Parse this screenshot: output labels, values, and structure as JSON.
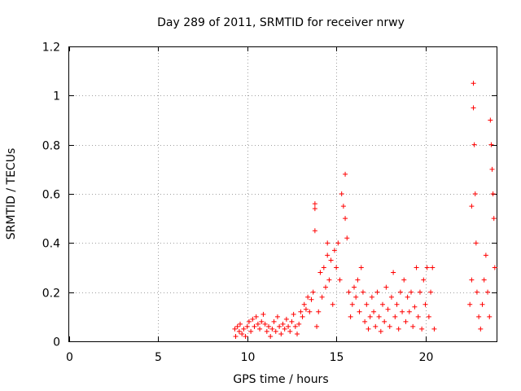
{
  "chart_data": {
    "type": "scatter",
    "title": "Day 289 of 2011, SRMTID for receiver nrwy",
    "xlabel": "GPS time / hours",
    "ylabel": "SRMTID / TECUs",
    "xlim": [
      0,
      24
    ],
    "ylim": [
      0,
      1.2
    ],
    "xticks": [
      0,
      5,
      10,
      15,
      20
    ],
    "xtick_labels": [
      "0",
      "5",
      "10",
      "15",
      "20"
    ],
    "yticks": [
      0,
      0.2,
      0.4,
      0.6,
      0.8,
      1.0,
      1.2
    ],
    "ytick_labels": [
      "0",
      "0.2",
      "0.4",
      "0.6",
      "0.8",
      "1",
      "1.2"
    ],
    "grid": true,
    "marker": "plus",
    "color": "#ff0000",
    "series": [
      {
        "name": "SRMTID",
        "points": [
          [
            9.3,
            0.05
          ],
          [
            9.35,
            0.02
          ],
          [
            9.45,
            0.06
          ],
          [
            9.55,
            0.04
          ],
          [
            9.6,
            0.07
          ],
          [
            9.7,
            0.03
          ],
          [
            9.8,
            0.05
          ],
          [
            9.9,
            0.02
          ],
          [
            10.0,
            0.06
          ],
          [
            10.1,
            0.08
          ],
          [
            10.2,
            0.04
          ],
          [
            10.3,
            0.09
          ],
          [
            10.4,
            0.06
          ],
          [
            10.5,
            0.1
          ],
          [
            10.6,
            0.07
          ],
          [
            10.7,
            0.05
          ],
          [
            10.8,
            0.08
          ],
          [
            10.9,
            0.11
          ],
          [
            11.0,
            0.07
          ],
          [
            11.1,
            0.04
          ],
          [
            11.2,
            0.06
          ],
          [
            11.3,
            0.02
          ],
          [
            11.4,
            0.05
          ],
          [
            11.5,
            0.08
          ],
          [
            11.6,
            0.04
          ],
          [
            11.7,
            0.1
          ],
          [
            11.8,
            0.06
          ],
          [
            11.9,
            0.03
          ],
          [
            12.0,
            0.07
          ],
          [
            12.1,
            0.05
          ],
          [
            12.2,
            0.09
          ],
          [
            12.3,
            0.06
          ],
          [
            12.4,
            0.04
          ],
          [
            12.5,
            0.08
          ],
          [
            12.6,
            0.11
          ],
          [
            12.7,
            0.06
          ],
          [
            12.8,
            0.03
          ],
          [
            12.9,
            0.07
          ],
          [
            13.0,
            0.12
          ],
          [
            13.1,
            0.1
          ],
          [
            13.2,
            0.15
          ],
          [
            13.3,
            0.13
          ],
          [
            13.4,
            0.18
          ],
          [
            13.5,
            0.12
          ],
          [
            13.6,
            0.17
          ],
          [
            13.7,
            0.2
          ],
          [
            13.8,
            0.56
          ],
          [
            13.8,
            0.45
          ],
          [
            13.8,
            0.54
          ],
          [
            13.9,
            0.06
          ],
          [
            14.0,
            0.12
          ],
          [
            14.1,
            0.28
          ],
          [
            14.2,
            0.18
          ],
          [
            14.3,
            0.3
          ],
          [
            14.4,
            0.22
          ],
          [
            14.5,
            0.4
          ],
          [
            14.5,
            0.35
          ],
          [
            14.6,
            0.25
          ],
          [
            14.7,
            0.33
          ],
          [
            14.8,
            0.15
          ],
          [
            14.9,
            0.37
          ],
          [
            15.0,
            0.3
          ],
          [
            15.1,
            0.4
          ],
          [
            15.2,
            0.25
          ],
          [
            15.3,
            0.6
          ],
          [
            15.4,
            0.55
          ],
          [
            15.5,
            0.68
          ],
          [
            15.5,
            0.5
          ],
          [
            15.6,
            0.42
          ],
          [
            15.7,
            0.2
          ],
          [
            15.8,
            0.1
          ],
          [
            15.9,
            0.15
          ],
          [
            16.0,
            0.22
          ],
          [
            16.1,
            0.18
          ],
          [
            16.2,
            0.25
          ],
          [
            16.3,
            0.12
          ],
          [
            16.4,
            0.3
          ],
          [
            16.5,
            0.2
          ],
          [
            16.6,
            0.08
          ],
          [
            16.7,
            0.15
          ],
          [
            16.8,
            0.05
          ],
          [
            16.9,
            0.1
          ],
          [
            17.0,
            0.18
          ],
          [
            17.1,
            0.12
          ],
          [
            17.2,
            0.06
          ],
          [
            17.3,
            0.2
          ],
          [
            17.4,
            0.1
          ],
          [
            17.5,
            0.04
          ],
          [
            17.6,
            0.15
          ],
          [
            17.7,
            0.08
          ],
          [
            17.8,
            0.22
          ],
          [
            17.9,
            0.13
          ],
          [
            18.0,
            0.06
          ],
          [
            18.1,
            0.18
          ],
          [
            18.2,
            0.28
          ],
          [
            18.3,
            0.1
          ],
          [
            18.4,
            0.15
          ],
          [
            18.5,
            0.05
          ],
          [
            18.6,
            0.2
          ],
          [
            18.7,
            0.12
          ],
          [
            18.8,
            0.25
          ],
          [
            18.9,
            0.08
          ],
          [
            19.0,
            0.18
          ],
          [
            19.1,
            0.12
          ],
          [
            19.2,
            0.2
          ],
          [
            19.3,
            0.06
          ],
          [
            19.4,
            0.14
          ],
          [
            19.5,
            0.3
          ],
          [
            19.6,
            0.1
          ],
          [
            19.7,
            0.2
          ],
          [
            19.8,
            0.05
          ],
          [
            19.9,
            0.25
          ],
          [
            20.0,
            0.15
          ],
          [
            20.1,
            0.3
          ],
          [
            20.2,
            0.1
          ],
          [
            20.3,
            0.2
          ],
          [
            20.4,
            0.3
          ],
          [
            20.5,
            0.05
          ],
          [
            22.5,
            0.15
          ],
          [
            22.6,
            0.55
          ],
          [
            22.6,
            0.25
          ],
          [
            22.7,
            1.05
          ],
          [
            22.7,
            0.95
          ],
          [
            22.75,
            0.8
          ],
          [
            22.8,
            0.6
          ],
          [
            22.85,
            0.4
          ],
          [
            22.9,
            0.2
          ],
          [
            23.0,
            0.1
          ],
          [
            23.1,
            0.05
          ],
          [
            23.2,
            0.15
          ],
          [
            23.3,
            0.25
          ],
          [
            23.4,
            0.35
          ],
          [
            23.5,
            0.2
          ],
          [
            23.6,
            0.1
          ],
          [
            23.65,
            0.9
          ],
          [
            23.7,
            0.8
          ],
          [
            23.75,
            0.7
          ],
          [
            23.8,
            0.6
          ],
          [
            23.85,
            0.5
          ],
          [
            23.9,
            0.3
          ]
        ]
      }
    ]
  }
}
